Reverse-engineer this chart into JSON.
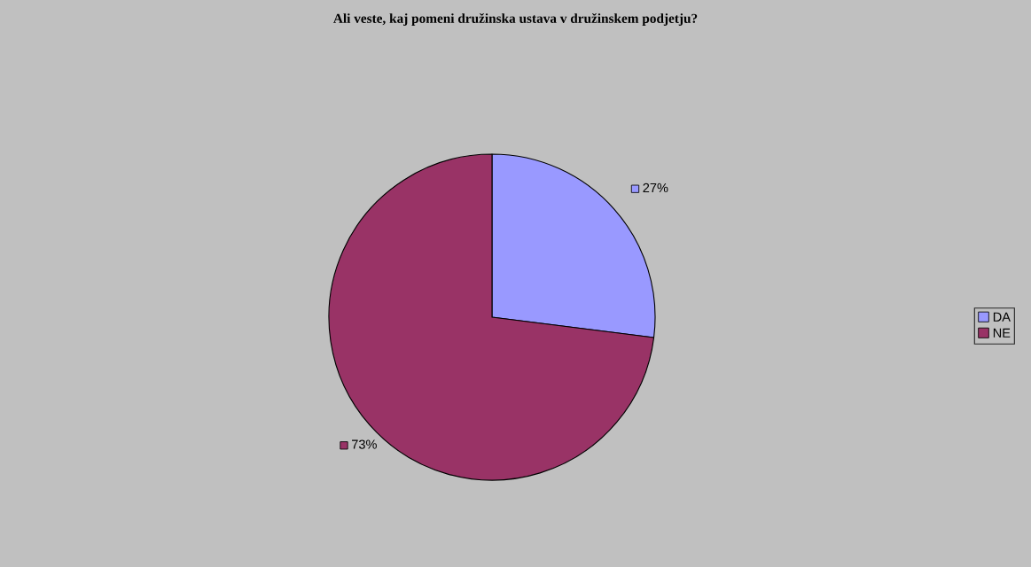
{
  "chart_data": {
    "type": "pie",
    "title": "Ali veste, kaj pomeni družinska ustava v družinskem podjetju?",
    "categories": [
      "DA",
      "NE"
    ],
    "values": [
      27,
      73
    ],
    "colors": [
      "#9999ff",
      "#993366"
    ],
    "value_labels": [
      "27%",
      "73%"
    ],
    "legend": "right"
  }
}
